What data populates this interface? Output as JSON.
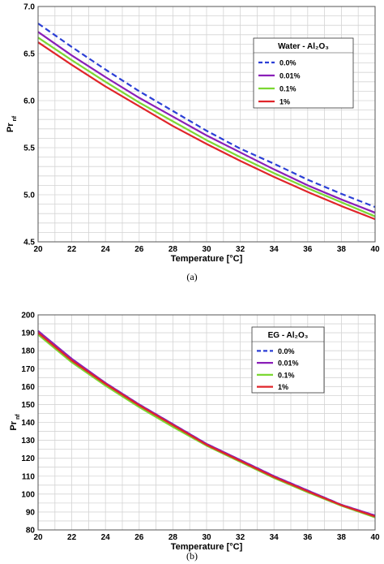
{
  "chart_data": [
    {
      "type": "line",
      "panel_label": "(a)",
      "xlabel": "Temperature [°C]",
      "ylabel_main": "Pr",
      "ylabel_sub": "nf",
      "xlim": [
        20,
        40
      ],
      "ylim": [
        4.5,
        7.0
      ],
      "xticks": [
        20,
        22,
        24,
        26,
        28,
        30,
        32,
        34,
        36,
        38,
        40
      ],
      "yticks": [
        4.5,
        5.0,
        5.5,
        6.0,
        6.5,
        7.0
      ],
      "ytick_labels": [
        "4.5",
        "5.0",
        "5.5",
        "6.0",
        "6.5",
        "7.0"
      ],
      "grid": true,
      "legend_title": "Water - Al₂O₃",
      "legend_position": "upper-right",
      "x": [
        20,
        22,
        24,
        26,
        28,
        30,
        32,
        34,
        36,
        38,
        40
      ],
      "series": [
        {
          "name": "0.0%",
          "color": "#2b3fd6",
          "dash": true,
          "values": [
            6.82,
            6.57,
            6.33,
            6.1,
            5.89,
            5.68,
            5.49,
            5.33,
            5.16,
            5.01,
            4.87
          ]
        },
        {
          "name": "0.01%",
          "color": "#8a1fb8",
          "dash": false,
          "values": [
            6.73,
            6.48,
            6.25,
            6.03,
            5.83,
            5.63,
            5.45,
            5.27,
            5.1,
            4.95,
            4.81
          ]
        },
        {
          "name": "0.1%",
          "color": "#7bd832",
          "dash": false,
          "values": [
            6.67,
            6.43,
            6.2,
            5.98,
            5.78,
            5.58,
            5.4,
            5.23,
            5.07,
            4.92,
            4.77
          ]
        },
        {
          "name": "1%",
          "color": "#e0252a",
          "dash": false,
          "values": [
            6.62,
            6.38,
            6.15,
            5.94,
            5.73,
            5.54,
            5.36,
            5.19,
            5.03,
            4.88,
            4.74
          ]
        }
      ]
    },
    {
      "type": "line",
      "panel_label": "(b)",
      "xlabel": "Temperature [°C]",
      "ylabel_main": "Pr",
      "ylabel_sub": "nf",
      "xlim": [
        20,
        40
      ],
      "ylim": [
        80,
        200
      ],
      "xticks": [
        20,
        22,
        24,
        26,
        28,
        30,
        32,
        34,
        36,
        38,
        40
      ],
      "yticks": [
        80,
        90,
        100,
        110,
        120,
        130,
        140,
        150,
        160,
        170,
        180,
        190,
        200
      ],
      "ytick_labels": [
        "80",
        "90",
        "100",
        "110",
        "120",
        "130",
        "140",
        "150",
        "160",
        "170",
        "180",
        "190",
        "200"
      ],
      "grid": true,
      "legend_title": "EG - Al₂O₃",
      "legend_position": "upper-right",
      "x": [
        20,
        22,
        24,
        26,
        28,
        30,
        32,
        34,
        36,
        38,
        40
      ],
      "series": [
        {
          "name": "0.0%",
          "color": "#2b3fd6",
          "dash": true,
          "values": [
            191,
            175,
            162,
            150,
            139,
            128,
            119,
            110,
            102,
            94,
            88
          ]
        },
        {
          "name": "0.01%",
          "color": "#8a1fb8",
          "dash": false,
          "values": [
            191,
            175.5,
            162,
            150,
            139,
            128,
            119,
            110,
            102,
            94,
            88
          ]
        },
        {
          "name": "0.1%",
          "color": "#7bd832",
          "dash": false,
          "values": [
            189,
            173.5,
            160.5,
            148.5,
            137.5,
            127,
            118,
            109,
            101,
            93.5,
            87
          ]
        },
        {
          "name": "1%",
          "color": "#e0252a",
          "dash": false,
          "values": [
            190,
            174.5,
            161.5,
            149.5,
            138.5,
            127.5,
            118.5,
            109.5,
            101.5,
            93.8,
            87.5
          ]
        }
      ]
    }
  ]
}
